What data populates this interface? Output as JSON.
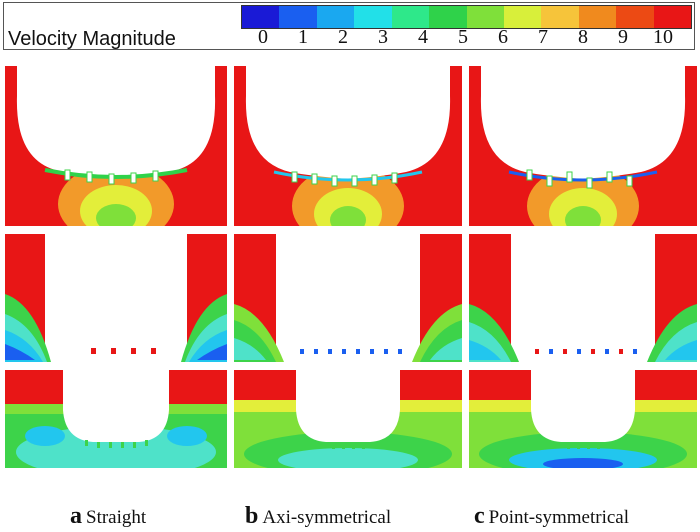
{
  "legend": {
    "title": "Velocity Magnitude",
    "ticks": [
      "0",
      "1",
      "2",
      "3",
      "4",
      "5",
      "6",
      "7",
      "8",
      "9",
      "10"
    ],
    "colors": [
      "#1a1ad6",
      "#1a5ff0",
      "#1aa8f0",
      "#22e0e8",
      "#2ee88a",
      "#2fd24a",
      "#7fe03a",
      "#d8ef3a",
      "#f6c43a",
      "#f08a1e",
      "#ec4a14",
      "#e81616"
    ]
  },
  "palette": {
    "flow": "#e81616",
    "blue": "#1a5ff0",
    "light_blue": "#22c6ee",
    "cyan": "#4ee2c9",
    "green": "#3dd34a",
    "yellow": "#e3ee3a",
    "orange": "#f29a2a"
  },
  "captions": [
    {
      "letter": "a",
      "text": "Straight"
    },
    {
      "letter": "b",
      "text": "Axi-symmetrical"
    },
    {
      "letter": "c",
      "text": "Point-symmetrical"
    }
  ]
}
